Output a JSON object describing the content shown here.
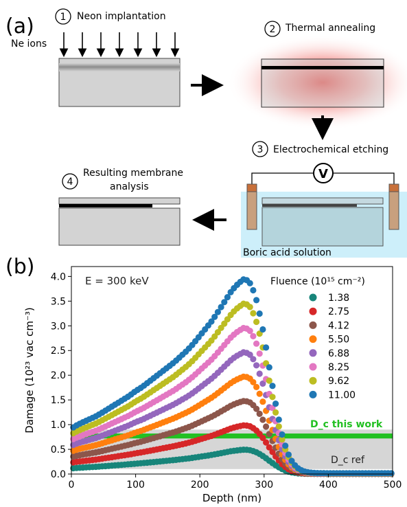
{
  "schematic": {
    "panel_label": "(a)",
    "steps": [
      {
        "num": "1",
        "label": "Neon implantation"
      },
      {
        "num": "2",
        "label": "Thermal annealing"
      },
      {
        "num": "3",
        "label": "Electrochemical etching"
      },
      {
        "num": "4",
        "label": "Resulting membrane",
        "label2": "analysis"
      }
    ],
    "ions_label": "Ne ions",
    "voltmeter_label": "V",
    "solution_label": "Boric acid solution",
    "colors": {
      "sample": "#d3d3d3",
      "damage": "#000000",
      "heat": "#e8332f",
      "solution": "#cdeffa",
      "electrode": "#c8703a"
    }
  },
  "chart_data": {
    "type": "scatter",
    "panel_label": "(b)",
    "annotation": "E = 300 keV",
    "xlabel": "Depth (nm)",
    "ylabel": "Damage (10²³ vac cm⁻³)",
    "xlim": [
      0,
      500
    ],
    "ylim": [
      0,
      4.2
    ],
    "xticks": [
      0,
      100,
      200,
      300,
      400,
      500
    ],
    "yticks": [
      0.0,
      0.5,
      1.0,
      1.5,
      2.0,
      2.5,
      3.0,
      3.5,
      4.0
    ],
    "legend": {
      "title": "Fluence (10¹⁵ cm⁻²)",
      "placement": "top-right"
    },
    "threshold_this_work": {
      "label": "D_c this work",
      "value": 0.77,
      "band": [
        0.72,
        0.82
      ],
      "color": "#22c022"
    },
    "threshold_ref": {
      "label": "D_c ref",
      "band": [
        0.1,
        0.9
      ],
      "color": "#d6d6d6"
    },
    "series": [
      {
        "name": "1.38",
        "color": "#17857a",
        "peak": 0.5
      },
      {
        "name": "2.75",
        "color": "#d62728",
        "peak": 1.0
      },
      {
        "name": "4.12",
        "color": "#8c564b",
        "peak": 1.5
      },
      {
        "name": "5.50",
        "color": "#ff7f0e",
        "peak": 2.0
      },
      {
        "name": "6.88",
        "color": "#9467bd",
        "peak": 2.5
      },
      {
        "name": "8.25",
        "color": "#e377c2",
        "peak": 3.0
      },
      {
        "name": "9.62",
        "color": "#bcbd22",
        "peak": 3.5
      },
      {
        "name": "11.00",
        "color": "#1f77b4",
        "peak": 4.0
      }
    ],
    "profile": {
      "depth": [
        0,
        10,
        20,
        30,
        40,
        50,
        60,
        70,
        80,
        90,
        100,
        110,
        120,
        130,
        140,
        150,
        160,
        170,
        180,
        190,
        200,
        210,
        220,
        230,
        240,
        250,
        260,
        270,
        280,
        290,
        300,
        310,
        320,
        330,
        340,
        350,
        360,
        370,
        380,
        400,
        450,
        500
      ],
      "relative_damage": [
        0.23,
        0.25,
        0.265,
        0.28,
        0.295,
        0.315,
        0.335,
        0.355,
        0.375,
        0.395,
        0.42,
        0.44,
        0.465,
        0.49,
        0.515,
        0.54,
        0.565,
        0.595,
        0.625,
        0.66,
        0.7,
        0.74,
        0.78,
        0.83,
        0.88,
        0.93,
        0.965,
        0.99,
        0.96,
        0.86,
        0.7,
        0.5,
        0.32,
        0.17,
        0.08,
        0.035,
        0.015,
        0.008,
        0.005,
        0.004,
        0.004,
        0.004
      ]
    }
  }
}
